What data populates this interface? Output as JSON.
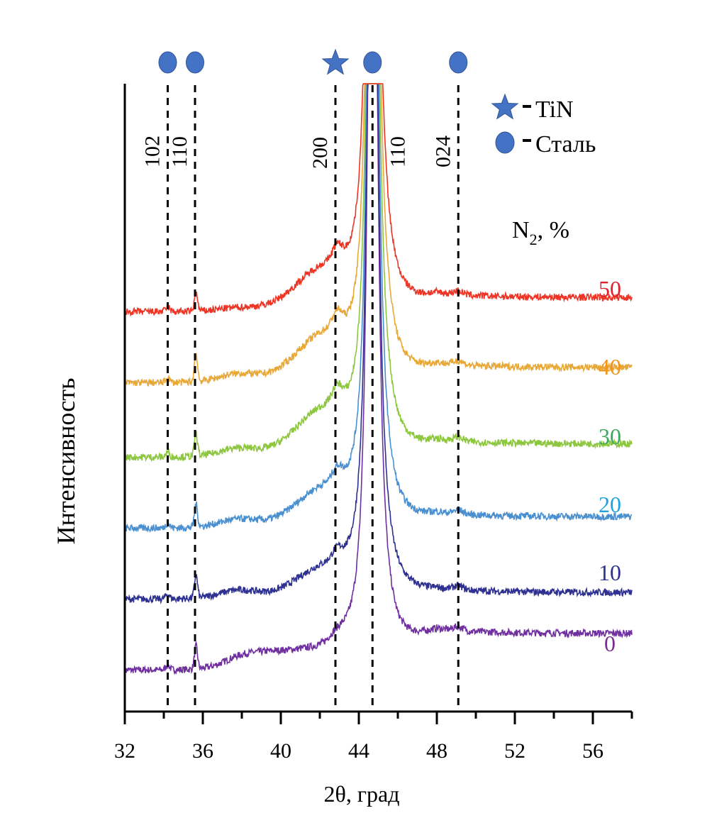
{
  "chart_data": {
    "type": "line",
    "title": "",
    "xlabel": "2θ, град",
    "ylabel": "Интенсивность",
    "xlim": [
      32,
      58
    ],
    "x_ticks": [
      32,
      36,
      40,
      44,
      48,
      52,
      56
    ],
    "x_tick_labels": [
      "32",
      "36",
      "40",
      "44",
      "48",
      "52",
      "56"
    ],
    "x_minor_step": 2,
    "y_ticks": [],
    "grid": false,
    "stacked_offset": true,
    "series_group_label": "N₂, %",
    "series_group_label_parts": {
      "base": "N",
      "sub": "2",
      "suffix": ", %"
    },
    "legend": {
      "placement": "top-right",
      "entries": [
        {
          "marker": "star",
          "label": "TiN",
          "color": "#4472c4"
        },
        {
          "marker": "circle",
          "label": "Сталь",
          "color": "#4472c4"
        }
      ]
    },
    "reference_lines": [
      {
        "x": 34.2,
        "hkl": "102",
        "phase": "Сталь",
        "marker": "circle"
      },
      {
        "x": 35.6,
        "hkl": "110",
        "phase": "Сталь",
        "marker": "circle"
      },
      {
        "x": 42.8,
        "hkl": "200",
        "phase": "TiN",
        "marker": "star"
      },
      {
        "x": 44.7,
        "hkl": "110",
        "phase": "Сталь",
        "marker": "circle"
      },
      {
        "x": 49.1,
        "hkl": "024",
        "phase": "Сталь",
        "marker": "circle"
      }
    ],
    "series": [
      {
        "name": "0",
        "color": "#7030a0",
        "label_color": "#7b2c91",
        "baseline_rel": 0.0,
        "features": {
          "start": 0.0,
          "peak_35_6": 0.45,
          "shoulder_37_40": 0.55,
          "tin_200": 0.75,
          "main_peak_44_7": "off-scale",
          "tail_after": 0.4,
          "end": 0.6
        }
      },
      {
        "name": "10",
        "color": "#2e3192",
        "label_color": "#2e3192",
        "baseline_rel": 1.0,
        "features": {
          "start": 0.0,
          "peak_35_6": 0.45,
          "shoulder_37_40": 0.25,
          "tin_200": 1.0,
          "main_peak_44_7": "off-scale",
          "tail_after": 0.4,
          "end": 0.35
        }
      },
      {
        "name": "20",
        "color": "#4a90d0",
        "label_color": "#1fa2dc",
        "baseline_rel": 2.0,
        "features": {
          "start": 0.0,
          "peak_35_6": 0.45,
          "shoulder_37_40": 0.25,
          "tin_200": 1.3,
          "main_peak_44_7": "off-scale",
          "tail_after": 0.55,
          "end": 0.6
        }
      },
      {
        "name": "30",
        "color": "#8dc63f",
        "label_color": "#3aaa5c",
        "baseline_rel": 3.0,
        "features": {
          "start": 0.0,
          "peak_35_6": 0.45,
          "shoulder_37_40": 0.25,
          "tin_200": 1.6,
          "main_peak_44_7": "off-scale",
          "tail_after": 0.7,
          "end": 0.7
        }
      },
      {
        "name": "40",
        "color": "#e8a838",
        "label_color": "#f0961e",
        "baseline_rel": 4.0,
        "features": {
          "start": 0.0,
          "peak_35_6": 0.55,
          "shoulder_37_40": 0.25,
          "tin_200": 1.6,
          "main_peak_44_7": "off-scale",
          "tail_after": 0.75,
          "end": 0.8
        }
      },
      {
        "name": "50",
        "color": "#ee3424",
        "label_color": "#e0202a",
        "baseline_rel": 5.0,
        "features": {
          "start": 0.0,
          "peak_35_6": 0.35,
          "shoulder_37_40": 0.1,
          "tin_200": 1.45,
          "main_peak_44_7": "off-scale",
          "tail_after": 0.75,
          "end": 0.75
        }
      }
    ]
  }
}
